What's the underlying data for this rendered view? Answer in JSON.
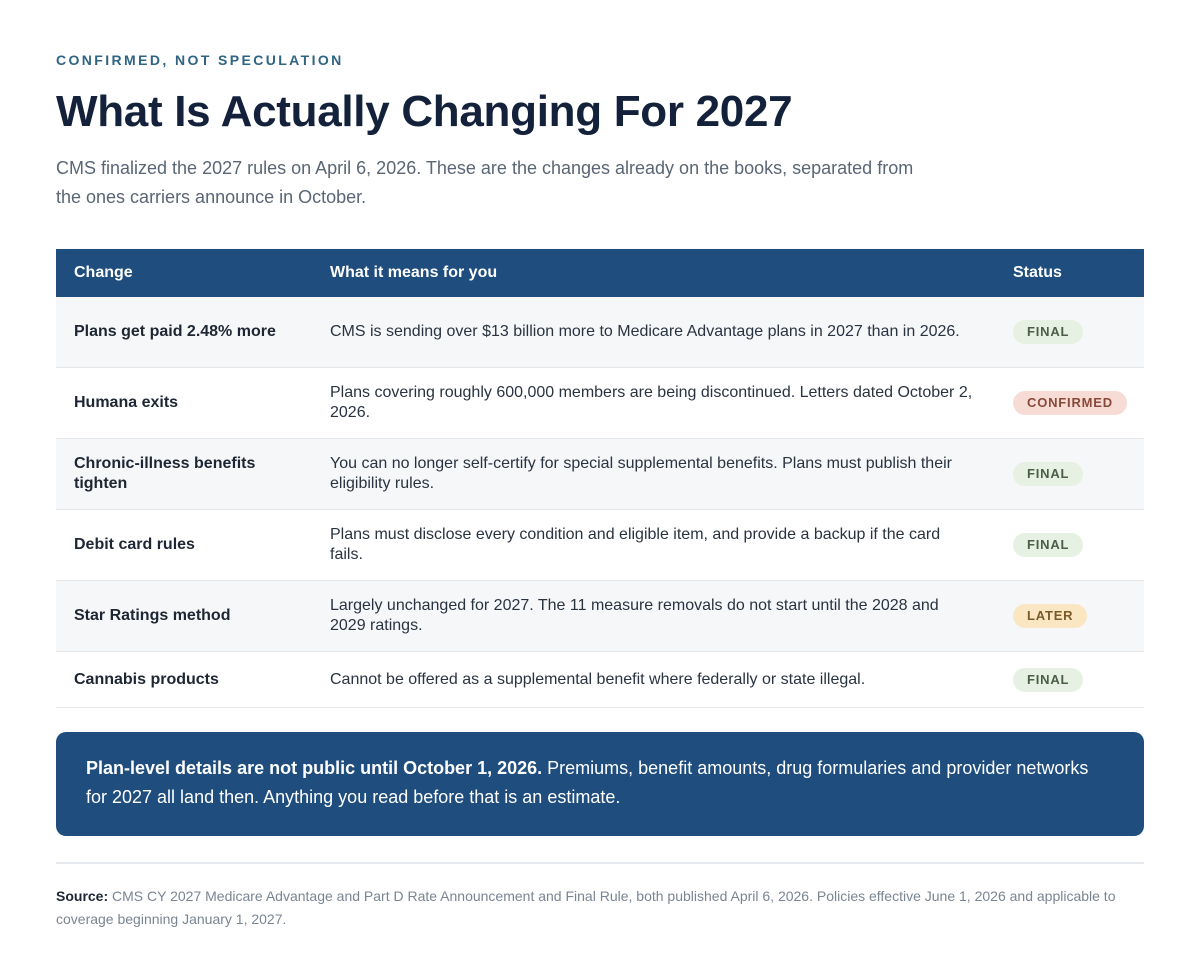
{
  "header": {
    "eyebrow": "CONFIRMED, NOT SPECULATION",
    "title": "What Is Actually Changing For 2027",
    "subtitle": "CMS finalized the 2027 rules on April 6, 2026. These are the changes already on the books, separated from the ones carriers announce in October."
  },
  "table": {
    "columns": [
      "Change",
      "What it means for you",
      "Status"
    ],
    "rows": [
      {
        "change": "Plans get paid 2.48% more",
        "means": "CMS is sending over $13 billion more to Medicare Advantage plans in 2027 than in 2026.",
        "status": "FINAL",
        "status_kind": "final"
      },
      {
        "change": "Humana exits",
        "means": "Plans covering roughly 600,000 members are being discontinued. Letters dated October 2, 2026.",
        "status": "CONFIRMED",
        "status_kind": "confirmed"
      },
      {
        "change": "Chronic-illness benefits tighten",
        "means": "You can no longer self-certify for special supplemental benefits. Plans must publish their eligibility rules.",
        "status": "FINAL",
        "status_kind": "final"
      },
      {
        "change": "Debit card rules",
        "means": "Plans must disclose every condition and eligible item, and provide a backup if the card fails.",
        "status": "FINAL",
        "status_kind": "final"
      },
      {
        "change": "Star Ratings method",
        "means": "Largely unchanged for 2027. The 11 measure removals do not start until the 2028 and 2029 ratings.",
        "status": "LATER",
        "status_kind": "later"
      },
      {
        "change": "Cannabis products",
        "means": "Cannot be offered as a supplemental benefit where federally or state illegal.",
        "status": "FINAL",
        "status_kind": "final"
      }
    ]
  },
  "callout": {
    "bold": "Plan-level details are not public until October 1, 2026.",
    "text": " Premiums, benefit amounts, drug formularies and provider networks for 2027 all land then. Anything you read before that is an estimate."
  },
  "source": {
    "label": "Source:",
    "text": " CMS CY 2027 Medicare Advantage and Part D Rate Announcement and Final Rule, both published April 6, 2026. Policies effective June 1, 2026 and applicable to coverage beginning January 1, 2027."
  },
  "colors": {
    "accent": "#1e4d7e",
    "eyebrow": "#2f6482",
    "final_bg": "#e6f1e3",
    "confirmed_bg": "#f7dcd6",
    "later_bg": "#fbe6c4"
  }
}
